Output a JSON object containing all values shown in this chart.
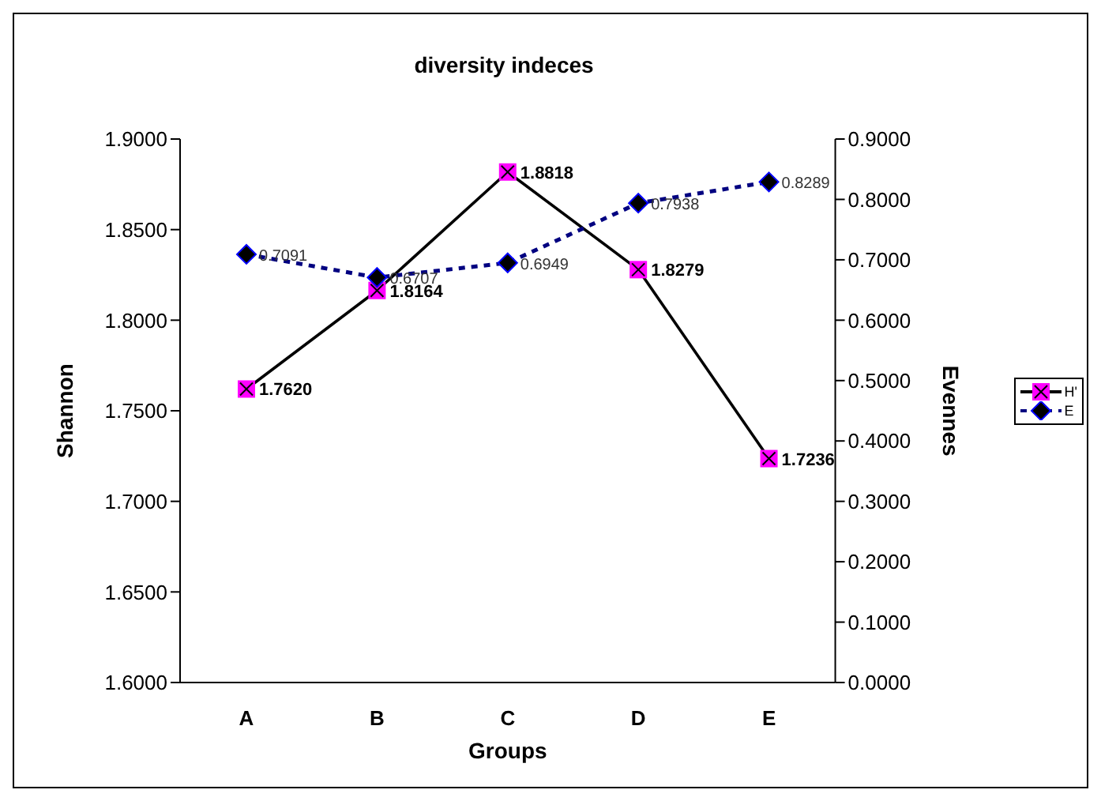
{
  "chart_data": {
    "type": "line",
    "title": "diversity indeces",
    "xlabel": "Groups",
    "ylabel": "Shannon",
    "y2label": "Evennes",
    "categories": [
      "A",
      "B",
      "C",
      "D",
      "E"
    ],
    "series": [
      {
        "name": "H'",
        "color": "#000000",
        "marker": "cross",
        "line_style": "solid",
        "values": [
          1.762,
          1.8164,
          1.8818,
          1.8279,
          1.7236
        ],
        "value_labels": [
          "1.7620",
          "1.8164",
          "1.8818",
          "1.8279",
          "1.7236"
        ]
      },
      {
        "name": "E",
        "color": "#000080",
        "marker": "diamond",
        "line_style": "dashed",
        "axis": "y2",
        "values": [
          0.7091,
          0.6707,
          0.6949,
          0.7938,
          0.8289
        ],
        "value_labels": [
          "0.7091",
          "0.6707",
          "0.6949",
          "0.7938",
          "0.8289"
        ]
      }
    ],
    "ylim": [
      1.6,
      1.9
    ],
    "yticks": [
      {
        "value": 1.6,
        "label": "1.6000"
      },
      {
        "value": 1.65,
        "label": "1.6500"
      },
      {
        "value": 1.7,
        "label": "1.7000"
      },
      {
        "value": 1.75,
        "label": "1.7500"
      },
      {
        "value": 1.8,
        "label": "1.8000"
      },
      {
        "value": 1.85,
        "label": "1.8500"
      },
      {
        "value": 1.9,
        "label": "1.9000"
      }
    ],
    "y2lim": [
      0,
      0.9
    ],
    "y2ticks": [
      {
        "value": 0,
        "label": "0.0000"
      },
      {
        "value": 0.1,
        "label": "0.1000"
      },
      {
        "value": 0.2,
        "label": "0.2000"
      },
      {
        "value": 0.3,
        "label": "0.3000"
      },
      {
        "value": 0.4,
        "label": "0.4000"
      },
      {
        "value": 0.5,
        "label": "0.5000"
      },
      {
        "value": 0.6,
        "label": "0.6000"
      },
      {
        "value": 0.7,
        "label": "0.7000"
      },
      {
        "value": 0.8,
        "label": "0.8000"
      },
      {
        "value": 0.9,
        "label": "0.9000"
      }
    ],
    "grid": false,
    "legend": "right"
  }
}
